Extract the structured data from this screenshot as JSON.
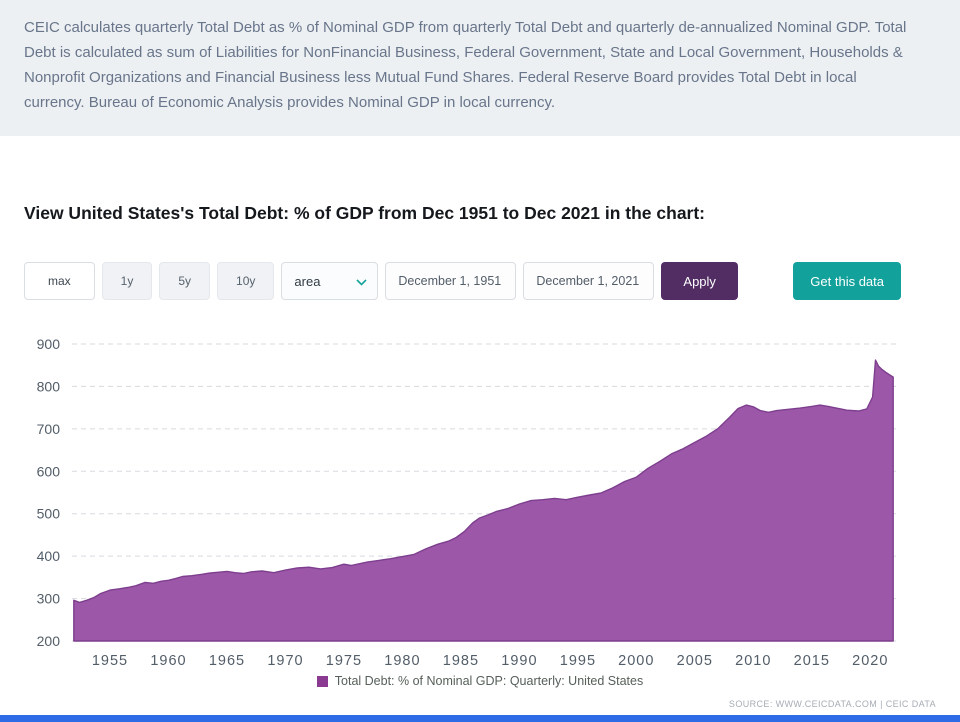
{
  "description": {
    "text": "CEIC calculates quarterly Total Debt as % of Nominal GDP from quarterly Total Debt and quarterly de-annualized Nominal GDP. Total Debt is calculated as sum of Liabilities for NonFinancial Business, Federal Government, State and Local Government, Households & Nonprofit Organizations and Financial Business less Mutual Fund Shares. Federal Reserve Board provides Total Debt in local currency. Bureau of Economic Analysis provides Nominal GDP in local currency."
  },
  "heading": {
    "text": "View United States's Total Debt: % of GDP from Dec 1951 to Dec 2021 in the chart:"
  },
  "toolbar": {
    "range_buttons": [
      {
        "label": "max",
        "active": true
      },
      {
        "label": "1y",
        "active": false
      },
      {
        "label": "5y",
        "active": false
      },
      {
        "label": "10y",
        "active": false
      }
    ],
    "chart_type_select": {
      "value": "area"
    },
    "start_date": "December 1, 1951",
    "end_date": "December 1, 2021",
    "apply_label": "Apply",
    "get_data_label": "Get this data"
  },
  "legend": {
    "label": "Total Debt: % of Nominal GDP: Quarterly: United States"
  },
  "source": {
    "text": "SOURCE: WWW.CEICDATA.COM | CEIC Data"
  },
  "colors": {
    "accent_teal": "#12a19b",
    "accent_purple": "#512d63",
    "bottom_bar_blue": "#2e6be6",
    "desc_band_bg": "#edf0f3",
    "legend_swatch": "#8b3a92"
  },
  "chart_data": {
    "type": "area",
    "title": "",
    "xlabel": "",
    "ylabel": "",
    "xlim": [
      1951.75,
      2022.2
    ],
    "ylim": [
      200,
      900
    ],
    "ytick_step": 100,
    "xticks": [
      1955,
      1960,
      1965,
      1970,
      1975,
      1980,
      1985,
      1990,
      1995,
      2000,
      2005,
      2010,
      2015,
      2020
    ],
    "grid": "dashed-horizontal",
    "legend_position": "bottom-center",
    "area_color": "#9c57a8",
    "line_color": "#7d3f8d",
    "series": [
      {
        "name": "Total Debt: % of Nominal GDP: Quarterly: United States",
        "points": [
          [
            1951.9,
            296
          ],
          [
            1952.4,
            291
          ],
          [
            1953.0,
            296
          ],
          [
            1953.6,
            302
          ],
          [
            1954.2,
            312
          ],
          [
            1955.0,
            320
          ],
          [
            1955.8,
            323
          ],
          [
            1956.5,
            326
          ],
          [
            1957.2,
            330
          ],
          [
            1958.0,
            338
          ],
          [
            1958.7,
            336
          ],
          [
            1959.4,
            341
          ],
          [
            1960.0,
            343
          ],
          [
            1960.6,
            347
          ],
          [
            1961.2,
            352
          ],
          [
            1962.0,
            354
          ],
          [
            1962.8,
            357
          ],
          [
            1963.5,
            360
          ],
          [
            1964.2,
            362
          ],
          [
            1965.0,
            364
          ],
          [
            1965.7,
            361
          ],
          [
            1966.4,
            359
          ],
          [
            1967.1,
            363
          ],
          [
            1968.0,
            365
          ],
          [
            1969.0,
            361
          ],
          [
            1970.0,
            367
          ],
          [
            1971.0,
            372
          ],
          [
            1972.0,
            374
          ],
          [
            1973.0,
            370
          ],
          [
            1974.0,
            373
          ],
          [
            1975.0,
            381
          ],
          [
            1975.6,
            378
          ],
          [
            1976.3,
            382
          ],
          [
            1977.0,
            386
          ],
          [
            1978.0,
            390
          ],
          [
            1979.0,
            394
          ],
          [
            1980.0,
            399
          ],
          [
            1981.0,
            404
          ],
          [
            1982.0,
            417
          ],
          [
            1983.0,
            428
          ],
          [
            1984.0,
            436
          ],
          [
            1984.6,
            444
          ],
          [
            1985.3,
            458
          ],
          [
            1986.0,
            478
          ],
          [
            1986.6,
            490
          ],
          [
            1987.3,
            497
          ],
          [
            1988.0,
            505
          ],
          [
            1989.0,
            512
          ],
          [
            1990.0,
            523
          ],
          [
            1991.0,
            531
          ],
          [
            1992.0,
            533
          ],
          [
            1993.0,
            536
          ],
          [
            1994.0,
            533
          ],
          [
            1995.0,
            539
          ],
          [
            1996.0,
            544
          ],
          [
            1997.0,
            549
          ],
          [
            1998.0,
            561
          ],
          [
            1999.0,
            576
          ],
          [
            2000.0,
            586
          ],
          [
            2001.0,
            607
          ],
          [
            2002.0,
            623
          ],
          [
            2003.0,
            641
          ],
          [
            2004.0,
            653
          ],
          [
            2005.0,
            668
          ],
          [
            2006.0,
            683
          ],
          [
            2007.0,
            701
          ],
          [
            2008.0,
            728
          ],
          [
            2008.7,
            748
          ],
          [
            2009.4,
            756
          ],
          [
            2010.0,
            752
          ],
          [
            2010.6,
            743
          ],
          [
            2011.3,
            739
          ],
          [
            2012.0,
            743
          ],
          [
            2013.0,
            746
          ],
          [
            2014.0,
            749
          ],
          [
            2015.0,
            753
          ],
          [
            2015.7,
            756
          ],
          [
            2016.4,
            753
          ],
          [
            2017.1,
            749
          ],
          [
            2018.0,
            744
          ],
          [
            2019.0,
            742
          ],
          [
            2019.7,
            747
          ],
          [
            2020.2,
            775
          ],
          [
            2020.45,
            862
          ],
          [
            2020.7,
            848
          ],
          [
            2021.0,
            840
          ],
          [
            2021.4,
            832
          ],
          [
            2021.96,
            822
          ]
        ]
      }
    ]
  }
}
